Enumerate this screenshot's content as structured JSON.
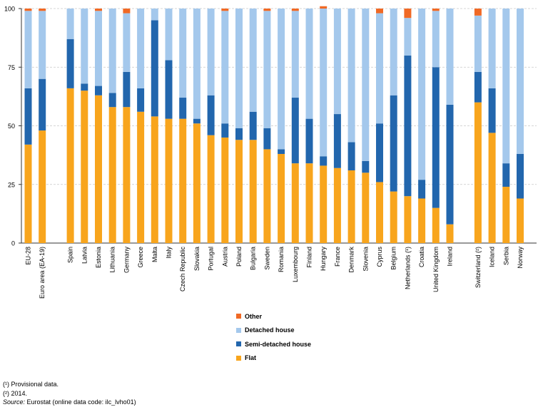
{
  "chart_data": {
    "type": "bar",
    "stacked": true,
    "ylim": [
      0,
      100
    ],
    "yticks": [
      0,
      25,
      50,
      75,
      100
    ],
    "grid": "horizontal dashed",
    "categories": [
      "EU-28",
      "Euro area (EA-19)",
      "Spain",
      "Latvia",
      "Estonia",
      "Lithuania",
      "Germany",
      "Greece",
      "Malta",
      "Italy",
      "Czech Republic",
      "Slovakia",
      "Portugal",
      "Austria",
      "Poland",
      "Bulgaria",
      "Sweden",
      "Romania",
      "Luxembourg",
      "Finland",
      "Hungary",
      "France",
      "Denmark",
      "Slovenia",
      "Cyprus",
      "Belgium",
      "Netherlands (¹)",
      "Croatia",
      "United Kingdom",
      "Ireland",
      "Switzerland (²)",
      "Iceland",
      "Serbia",
      "Norway"
    ],
    "series": [
      {
        "name": "Flat",
        "color": "#f8a51d",
        "values": [
          42,
          48,
          66,
          65,
          63,
          58,
          58,
          56,
          54,
          53,
          53,
          51,
          46,
          45,
          44,
          44,
          40,
          38,
          34,
          34,
          33,
          32,
          31,
          30,
          26,
          22,
          20,
          19,
          15,
          8,
          60,
          47,
          24,
          19
        ]
      },
      {
        "name": "Semi-detached house",
        "color": "#2266ad",
        "values": [
          24,
          22,
          21,
          3,
          4,
          6,
          15,
          10,
          41,
          25,
          9,
          2,
          17,
          6,
          5,
          12,
          9,
          2,
          28,
          19,
          4,
          23,
          12,
          5,
          25,
          41,
          60,
          8,
          60,
          51,
          13,
          19,
          10,
          19
        ]
      },
      {
        "name": "Detached house",
        "color": "#a4c8ec",
        "values": [
          33,
          29,
          13,
          32,
          32,
          36,
          25,
          34,
          5,
          22,
          38,
          47,
          37,
          48,
          51,
          44,
          50,
          60,
          37,
          47,
          63,
          45,
          57,
          65,
          47,
          37,
          16,
          73,
          24,
          41,
          24,
          34,
          66,
          62
        ]
      },
      {
        "name": "Other",
        "color": "#f06925",
        "values": [
          1,
          1,
          0,
          0,
          1,
          0,
          2,
          0,
          0,
          0,
          0,
          0,
          0,
          1,
          0,
          0,
          1,
          0,
          1,
          0,
          1,
          0,
          0,
          0,
          2,
          0,
          4,
          0,
          1,
          0,
          3,
          0,
          0,
          0
        ]
      }
    ]
  },
  "legend_order": [
    "Other",
    "Detached house",
    "Semi-detached house",
    "Flat"
  ],
  "footnotes": {
    "note1": "(¹) Provisional data.",
    "note2": "(²) 2014.",
    "source_label": "Source:",
    "source_text": " Eurostat (online data code: ilc_lvho01)"
  }
}
